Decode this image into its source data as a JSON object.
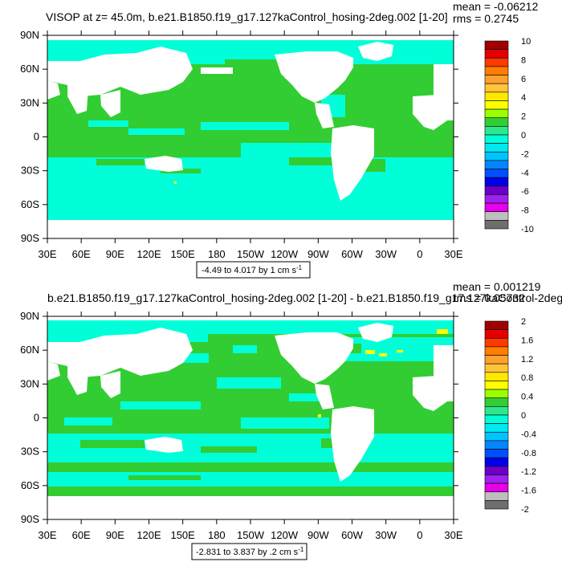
{
  "colors": {
    "ocean_green": "#32CD32",
    "ocean_cyan": "#00FFD9",
    "land": "#FFFFFF",
    "anomaly_yellow": "#FFFF00"
  },
  "chart_data": [
    {
      "type": "heatmap",
      "title": "VISOP at z=  45.0m, b.e21.B1850.f19_g17.127kaControl_hosing-2deg.002 [1-20]",
      "stats": {
        "mean": "mean = -0.06212",
        "rms": "rms = 0.2745"
      },
      "x_ticks": [
        "30E",
        "60E",
        "90E",
        "120E",
        "150E",
        "180",
        "150W",
        "120W",
        "90W",
        "60W",
        "30W",
        "0",
        "30E"
      ],
      "y_ticks": [
        "90N",
        "60N",
        "30N",
        "0",
        "30S",
        "60S",
        "90S"
      ],
      "xlim": [
        30,
        390
      ],
      "ylim": [
        -90,
        90
      ],
      "colorbar": {
        "labels": [
          "10",
          "8",
          "6",
          "4",
          "2",
          "0",
          "-2",
          "-4",
          "-6",
          "-8",
          "-10"
        ],
        "colors": [
          "#A00000",
          "#E40000",
          "#FF3A00",
          "#FF7E00",
          "#FF9F2E",
          "#FFC43A",
          "#FFE800",
          "#FFFF00",
          "#9CFF00",
          "#32CD32",
          "#2EE88E",
          "#00FFD9",
          "#00E8F0",
          "#00C4FF",
          "#0087FF",
          "#0050FF",
          "#0000E8",
          "#6A00C8",
          "#A020F0",
          "#E800E8",
          "#BEBEBE",
          "#6E6E6E"
        ]
      },
      "range_text": "-4.49 to 4.017 by 1 cm s",
      "range_exp": "-1"
    },
    {
      "type": "heatmap",
      "title": "b.e21.B1850.f19_g17.127kaControl_hosing-2deg.002 [1-20] - b.e21.B1850.f19_g17.127kaControl-2deg.",
      "stats": {
        "mean": "mean = 0.001219",
        "rms": "rms = 0.05732"
      },
      "x_ticks": [
        "30E",
        "60E",
        "90E",
        "120E",
        "150E",
        "180",
        "150W",
        "120W",
        "90W",
        "60W",
        "30W",
        "0",
        "30E"
      ],
      "y_ticks": [
        "90N",
        "60N",
        "30N",
        "0",
        "30S",
        "60S",
        "90S"
      ],
      "xlim": [
        30,
        390
      ],
      "ylim": [
        -90,
        90
      ],
      "colorbar": {
        "labels": [
          "2",
          "1.6",
          "1.2",
          "0.8",
          "0.4",
          "0",
          "-0.4",
          "-0.8",
          "-1.2",
          "-1.6",
          "-2"
        ],
        "colors": [
          "#A00000",
          "#E40000",
          "#FF3A00",
          "#FF7E00",
          "#FF9F2E",
          "#FFC43A",
          "#FFE800",
          "#FFFF00",
          "#9CFF00",
          "#32CD32",
          "#2EE88E",
          "#00FFD9",
          "#00E8F0",
          "#00C4FF",
          "#0087FF",
          "#0050FF",
          "#0000E8",
          "#6A00C8",
          "#A020F0",
          "#E800E8",
          "#BEBEBE",
          "#6E6E6E"
        ]
      },
      "range_text": "-2.831 to 3.837 by .2 cm s",
      "range_exp": "-1"
    }
  ]
}
